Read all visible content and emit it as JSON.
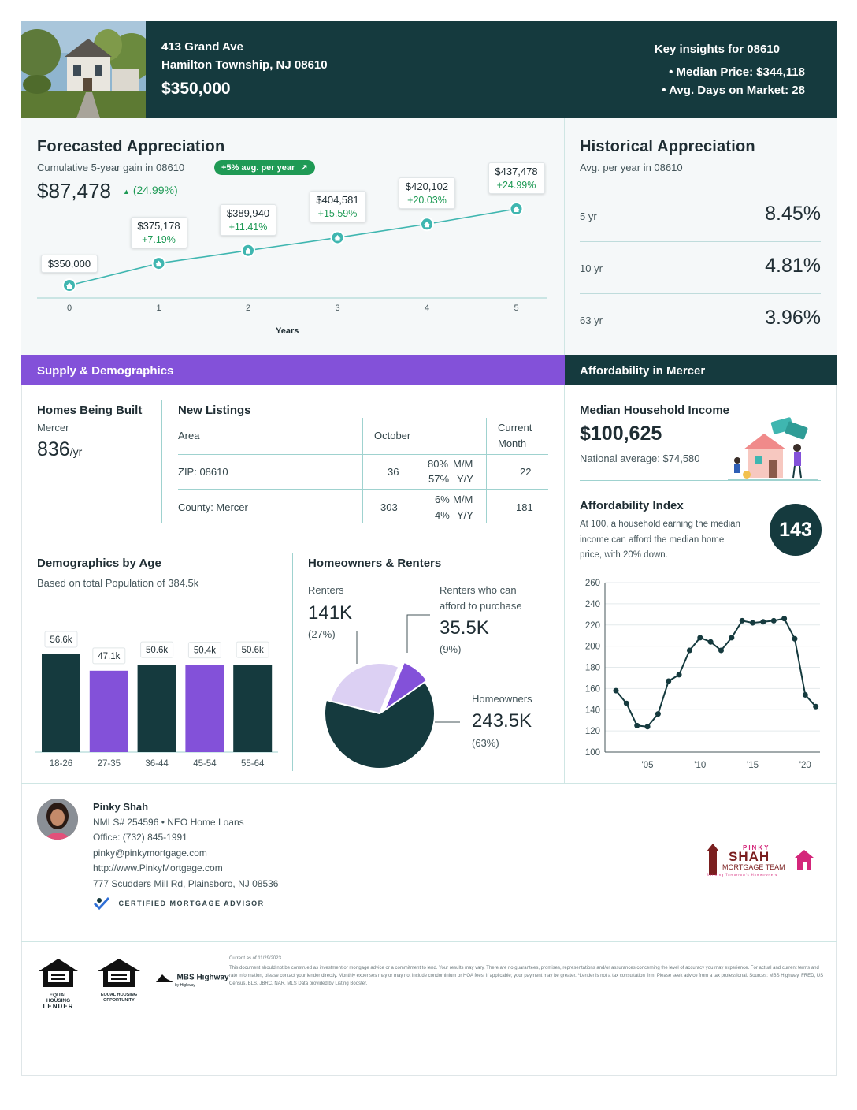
{
  "header": {
    "address_line1": "413 Grand Ave",
    "address_line2": "Hamilton Township, NJ 08610",
    "price": "$350,000",
    "insights_title": "Key insights for 08610",
    "insight_median": "• Median Price: $344,118",
    "insight_days": "• Avg. Days on Market: 28"
  },
  "forecast": {
    "title": "Forecasted Appreciation",
    "subtitle": "Cumulative 5-year gain in 08610",
    "pill": "+5% avg. per year",
    "gain": "$87,478",
    "gain_pct": "(24.99%)",
    "xlabel": "Years",
    "points": [
      {
        "year": "0",
        "value": "$350,000",
        "pct": ""
      },
      {
        "year": "1",
        "value": "$375,178",
        "pct": "+7.19%"
      },
      {
        "year": "2",
        "value": "$389,940",
        "pct": "+11.41%"
      },
      {
        "year": "3",
        "value": "$404,581",
        "pct": "+15.59%"
      },
      {
        "year": "4",
        "value": "$420,102",
        "pct": "+20.03%"
      },
      {
        "year": "5",
        "value": "$437,478",
        "pct": "+24.99%"
      }
    ]
  },
  "historical": {
    "title": "Historical Appreciation",
    "subtitle": "Avg. per year in 08610",
    "rows": [
      {
        "label": "5 yr",
        "value": "8.45%"
      },
      {
        "label": "10 yr",
        "value": "4.81%"
      },
      {
        "label": "63 yr",
        "value": "3.96%"
      }
    ]
  },
  "supply": {
    "bar_title": "Supply & Demographics",
    "homes_title": "Homes Being Built",
    "homes_area": "Mercer",
    "homes_value": "836",
    "homes_unit": "/yr",
    "listings_title": "New Listings",
    "col_area": "Area",
    "col_october": "October",
    "col_current_1": "Current",
    "col_current_2": "Month",
    "rows": [
      {
        "area": "ZIP: 08610",
        "october": "36",
        "mm_pct": "80%",
        "mm": "M/M",
        "yy_pct": "57%",
        "yy": "Y/Y",
        "current": "22"
      },
      {
        "area": "County: Mercer",
        "october": "303",
        "mm_pct": "6%",
        "mm": "M/M",
        "yy_pct": "4%",
        "yy": "Y/Y",
        "current": "181"
      }
    ]
  },
  "demographics": {
    "title": "Demographics by Age",
    "subtitle": "Based on total Population of 384.5k"
  },
  "owners": {
    "title": "Homeowners & Renters",
    "renters_label": "Renters",
    "renters_value": "141K",
    "renters_pct": "(27%)",
    "afford_label_1": "Renters who can",
    "afford_label_2": "afford to purchase",
    "afford_value": "35.5K",
    "afford_pct": "(9%)",
    "owners_label": "Homeowners",
    "owners_value": "243.5K",
    "owners_pct": "(63%)"
  },
  "affordability": {
    "bar_title": "Affordability in Mercer",
    "income_title": "Median Household Income",
    "income_value": "$100,625",
    "income_national": "National average: $74,580",
    "index_title": "Affordability Index",
    "index_desc_1": "At 100, a household earning the median",
    "index_desc_2": "income can afford the median home",
    "index_desc_3": "price, with 20% down.",
    "index_value": "143"
  },
  "chart_data": [
    {
      "type": "line",
      "title": "Forecasted Appreciation",
      "xlabel": "Years",
      "x": [
        0,
        1,
        2,
        3,
        4,
        5
      ],
      "values": [
        350000,
        375178,
        389940,
        404581,
        420102,
        437478
      ],
      "labels": [
        "$350,000",
        "$375,178",
        "$389,940",
        "$404,581",
        "$420,102",
        "$437,478"
      ],
      "grid": false
    },
    {
      "type": "bar",
      "title": "Demographics by Age",
      "categories": [
        "18-26",
        "27-35",
        "36-44",
        "45-54",
        "55-64"
      ],
      "values": [
        56.6,
        47.1,
        50.6,
        50.4,
        50.6
      ],
      "labels": [
        "56.6k",
        "47.1k",
        "50.6k",
        "50.4k",
        "50.6k"
      ],
      "colors": [
        "#153a3e",
        "#8351d9",
        "#153a3e",
        "#8351d9",
        "#153a3e"
      ],
      "grid": false
    },
    {
      "type": "pie",
      "title": "Homeowners & Renters",
      "categories": [
        "Homeowners",
        "Renters",
        "Renters who can afford to purchase"
      ],
      "values": [
        63,
        27,
        9
      ],
      "colors": [
        "#153a3e",
        "#dcd0f3",
        "#8351d9"
      ]
    },
    {
      "type": "line",
      "title": "Affordability Index",
      "x": [
        2002,
        2003,
        2004,
        2005,
        2006,
        2007,
        2008,
        2009,
        2010,
        2011,
        2012,
        2013,
        2014,
        2015,
        2016,
        2017,
        2018,
        2019,
        2020,
        2021
      ],
      "values": [
        158,
        146,
        125,
        124,
        136,
        167,
        173,
        196,
        208,
        204,
        196,
        208,
        224,
        222,
        223,
        224,
        226,
        207,
        154,
        143
      ],
      "xticks": [
        "'05",
        "'10",
        "'15",
        "'20"
      ],
      "yticks": [
        "100",
        "120",
        "140",
        "160",
        "180",
        "200",
        "220",
        "240",
        "260"
      ],
      "ylim": [
        100,
        260
      ],
      "grid": true
    }
  ],
  "agent": {
    "name": "Pinky Shah",
    "nmls": "NMLS# 254596 • NEO Home Loans",
    "office": "Office: (732) 845-1991",
    "email": "pinky@pinkymortgage.com",
    "website": "http://www.PinkyMortgage.com",
    "address": "777 Scudders Mill Rd, Plainsboro, NJ 08536",
    "certified": "CERTIFIED MORTGAGE ADVISOR",
    "logo_top": "PINKY",
    "logo_main": "SHAH",
    "logo_sub": "MORTGAGE TEAM",
    "logo_tag": "Building Tomorrow's Homeowners"
  },
  "footer": {
    "equal_lender_1": "EQUAL HOUSING",
    "equal_lender_2": "LENDER",
    "equal_opp_1": "EQUAL HOUSING",
    "equal_opp_2": "OPPORTUNITY",
    "mbs": "MBS Highway",
    "mbs_sub": "by Highway",
    "current_as_of": "Current as of 11/29/2023.",
    "disclaimer": "This document should not be construed as investment or mortgage advice or a commitment to lend. Your results may vary. There are no guarantees, promises, representations and/or assurances concerning the level of accuracy you may experience. For actual and current terms and rate information, please contact your lender directly. Monthly expenses may or may not include condominium or HOA fees, if applicable; your payment may be greater. *Lender is not a tax consultation firm. Please seek advice from a tax professional. Sources: MBS Highway, FRED, US Census, BLS, JBRC, NAR. MLS Data provided by Listing Booster."
  }
}
